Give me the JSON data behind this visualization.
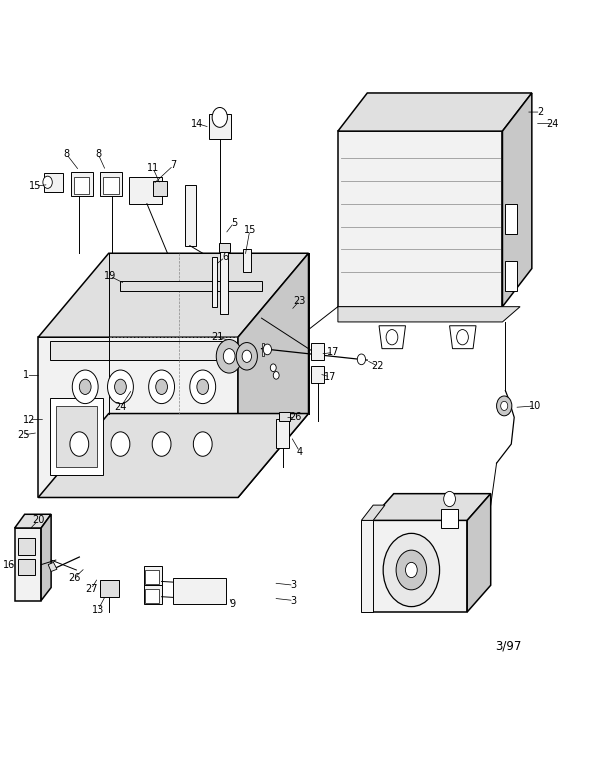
{
  "bg_color": "#ffffff",
  "fig_width": 5.92,
  "fig_height": 7.66,
  "dpi": 100,
  "date_label": "3/97",
  "line_color": "#000000",
  "fill_light": "#f2f2f2",
  "fill_mid": "#e0e0e0",
  "fill_dark": "#c8c8c8",
  "lw_main": 1.1,
  "lw_thin": 0.7,
  "lw_med": 0.9
}
